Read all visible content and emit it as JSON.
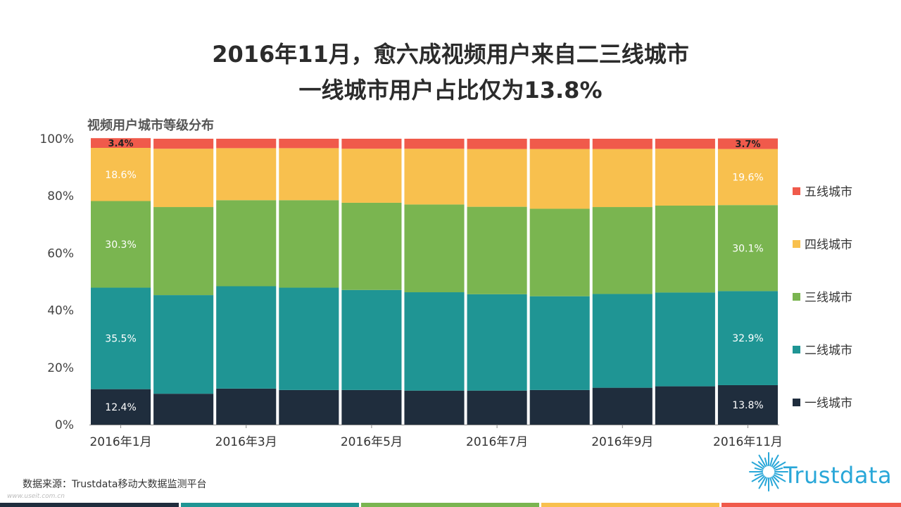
{
  "title_line1": "2016年11月，愈六成视频用户来自二三线城市",
  "title_line2": "一线城市用户占比仅为13.8%",
  "subtitle": "视频用户城市等级分布",
  "source": "数据来源：Trustdata移动大数据监测平台",
  "watermark": "www.useit.com.cn",
  "logo_text": "Trustdata",
  "colors": {
    "tier1": "#1f2d3d",
    "tier2": "#1f9594",
    "tier3": "#7ab550",
    "tier4": "#f8c04e",
    "tier5": "#f05a4b",
    "logo": "#29a7d8"
  },
  "legend": [
    {
      "label": "五线城市",
      "color": "#f05a4b"
    },
    {
      "label": "四线城市",
      "color": "#f8c04e"
    },
    {
      "label": "三线城市",
      "color": "#7ab550"
    },
    {
      "label": "二线城市",
      "color": "#1f9594"
    },
    {
      "label": "一线城市",
      "color": "#1f2d3d"
    }
  ],
  "chart_data": {
    "type": "bar",
    "stacked": true,
    "percent": true,
    "title": "视频用户城市等级分布",
    "categories": [
      "2016年1月",
      "2016年2月",
      "2016年3月",
      "2016年4月",
      "2016年5月",
      "2016年6月",
      "2016年7月",
      "2016年8月",
      "2016年9月",
      "2016年10月",
      "2016年11月"
    ],
    "x_tick_labels": [
      "2016年1月",
      "2016年3月",
      "2016年5月",
      "2016年7月",
      "2016年9月",
      "2016年11月"
    ],
    "y_ticks": [
      "0%",
      "20%",
      "40%",
      "60%",
      "80%",
      "100%"
    ],
    "ylim": [
      0,
      100
    ],
    "series": [
      {
        "name": "一线城市",
        "color": "#1f2d3d",
        "values": [
          12.4,
          10.8,
          12.6,
          12.1,
          12.1,
          11.9,
          11.9,
          12.1,
          12.9,
          13.4,
          13.8
        ],
        "labels": [
          "12.4%",
          "",
          "",
          "",
          "",
          "",
          "",
          "",
          "",
          "",
          "13.8%"
        ]
      },
      {
        "name": "二线城市",
        "color": "#1f9594",
        "values": [
          35.5,
          34.5,
          35.8,
          35.8,
          35.0,
          34.4,
          33.7,
          32.8,
          32.8,
          32.8,
          32.9
        ],
        "labels": [
          "35.5%",
          "",
          "",
          "",
          "",
          "",
          "",
          "",
          "",
          "",
          "32.9%"
        ]
      },
      {
        "name": "三线城市",
        "color": "#7ab550",
        "values": [
          30.3,
          30.8,
          30.1,
          30.6,
          30.5,
          30.7,
          30.6,
          30.6,
          30.4,
          30.4,
          30.1
        ],
        "labels": [
          "30.3%",
          "",
          "",
          "",
          "",
          "",
          "",
          "",
          "",
          "",
          "30.1%"
        ]
      },
      {
        "name": "四线城市",
        "color": "#f8c04e",
        "values": [
          18.6,
          20.4,
          18.2,
          18.2,
          18.9,
          19.5,
          20.2,
          20.9,
          20.3,
          19.9,
          19.6
        ],
        "labels": [
          "18.6%",
          "",
          "",
          "",
          "",
          "",
          "",
          "",
          "",
          "",
          "19.6%"
        ]
      },
      {
        "name": "五线城市",
        "color": "#f05a4b",
        "values": [
          3.4,
          3.5,
          3.3,
          3.3,
          3.5,
          3.5,
          3.6,
          3.6,
          3.6,
          3.5,
          3.7
        ],
        "labels": [
          "3.4%",
          "",
          "",
          "",
          "",
          "",
          "",
          "",
          "",
          "",
          "3.7%"
        ]
      }
    ]
  }
}
